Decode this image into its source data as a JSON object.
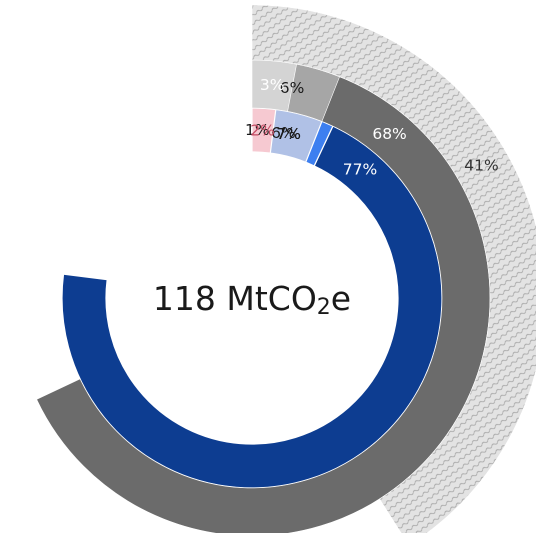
{
  "chart_data": {
    "type": "pie",
    "center_label": {
      "value": "118 MtCO",
      "sub": "2",
      "suffix": "e"
    },
    "rings": [
      {
        "ring": "inner",
        "slices": [
          {
            "value": 77,
            "label": "77%",
            "color": "#0d3d91",
            "label_color": "#ffffff"
          },
          {
            "value": 7,
            "label": "7%",
            "color": "#7089c9",
            "label_color": "#1a1a1a"
          },
          {
            "value": 7,
            "label": "7%",
            "color": "#3d7ff0",
            "label_color": "#1a1a1a"
          },
          {
            "value": 6,
            "label": "6%",
            "color": "#b0c1e6",
            "label_color": "#1a1a1a"
          },
          {
            "value": 1,
            "label": "1%",
            "color": "#cfdaf4",
            "label_color": "#1a1a1a"
          },
          {
            "value": 2,
            "label": "2%",
            "color": "#f6c9d1",
            "label_color": "#c44d64"
          }
        ]
      },
      {
        "ring": "middle",
        "slices": [
          {
            "value": 68,
            "label": "68%",
            "color": "#6b6b6b",
            "label_color": "#ffffff"
          },
          {
            "value": 6,
            "label": "6%",
            "color": "#a6a6a6",
            "label_color": "#1a1a1a"
          },
          {
            "value": 3,
            "label": "3%",
            "color": "#d4d4d4",
            "label_color": "#ffffff"
          }
        ]
      },
      {
        "ring": "outer",
        "slices": [
          {
            "value": 41,
            "label": "41%",
            "color": "hatch",
            "label_color": "#333333"
          }
        ]
      }
    ]
  }
}
